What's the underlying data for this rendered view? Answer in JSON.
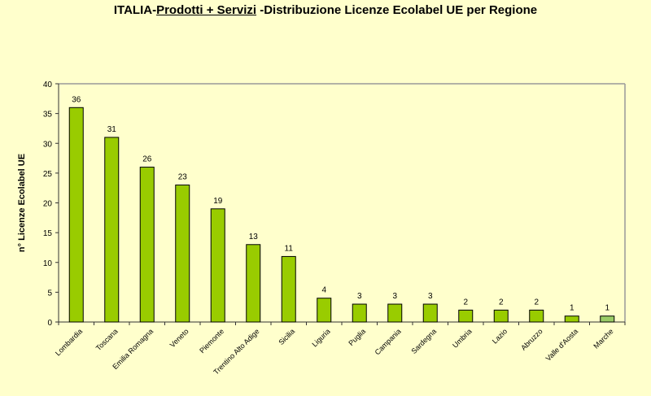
{
  "chart_data": {
    "type": "bar",
    "title_parts": [
      "ITALIA-",
      "Prodotti + Servizi",
      " -Distribuzione Licenze Ecolabel UE per Regione"
    ],
    "xlabel": "",
    "ylabel": "n° Licenze  Ecolabel  UE",
    "ylim": [
      0,
      40
    ],
    "yticks": [
      0,
      5,
      10,
      15,
      20,
      25,
      30,
      35,
      40
    ],
    "categories": [
      "Lombardia",
      "Toscana",
      "Emilia Romagna",
      "Veneto",
      "Piemonte",
      "Trentino Alto Adige",
      "Sicilia",
      "Liguria",
      "Puglia",
      "Campania",
      "Sardegna",
      "Umbria",
      "Lazio",
      "Abruzzo",
      "Valle d'Aosta",
      "Marche"
    ],
    "values": [
      36,
      31,
      26,
      23,
      19,
      13,
      11,
      4,
      3,
      3,
      3,
      2,
      2,
      2,
      1,
      1
    ],
    "colors": {
      "bar": "#99CC00",
      "last_bar": "#99CC66",
      "background": "#FFFFCC",
      "border": "#000000"
    },
    "grid": false,
    "legend": "none"
  }
}
